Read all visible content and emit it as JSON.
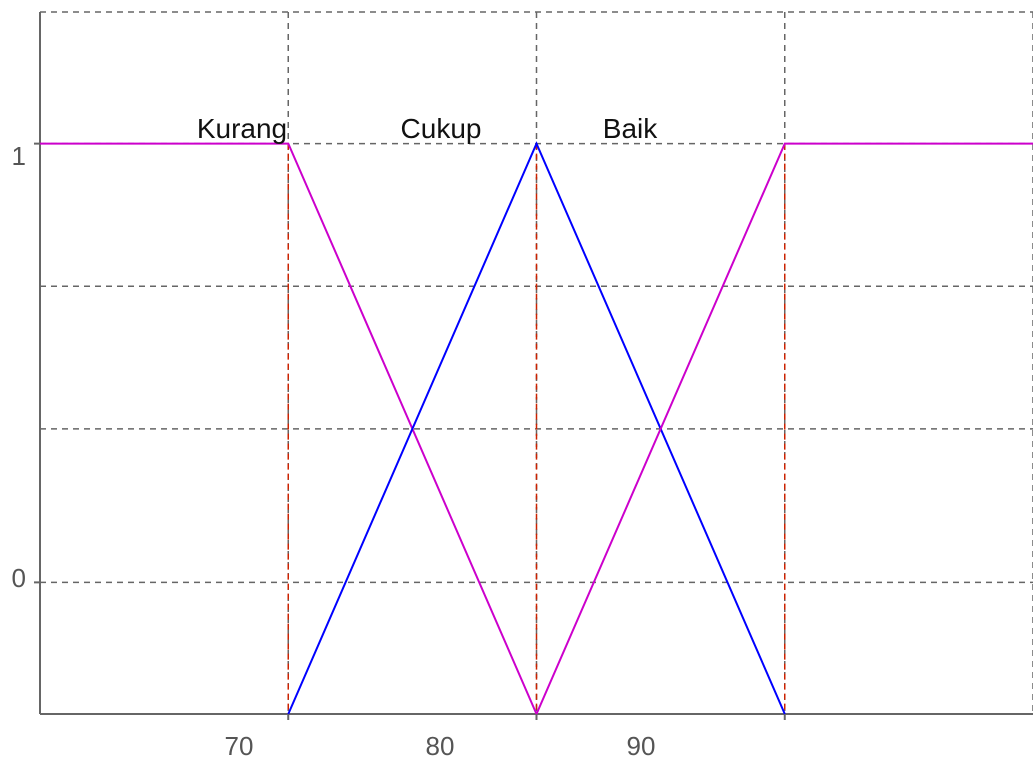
{
  "chart_data": {
    "type": "line",
    "x_ticks": [
      "70",
      "80",
      "90"
    ],
    "y_ticks": [
      "0",
      "1"
    ],
    "grid": true,
    "colors": {
      "magenta": "#cc00cc",
      "blue": "#0000ff",
      "red_dashed": "#cc2200",
      "grid": "#666666",
      "axis": "#666666"
    },
    "series": [
      {
        "name": "Kurang",
        "color": "#cc00cc",
        "points": [
          [
            60,
            1
          ],
          [
            70,
            1
          ],
          [
            80,
            -0.3
          ]
        ]
      },
      {
        "name": "Cukup",
        "color": "#0000ff",
        "points": [
          [
            70,
            -0.3
          ],
          [
            80,
            1
          ],
          [
            90,
            -0.3
          ]
        ]
      },
      {
        "name": "Baik",
        "color": "#cc00cc",
        "points": [
          [
            80,
            -0.3
          ],
          [
            90,
            1
          ],
          [
            100,
            1
          ]
        ]
      }
    ],
    "red_dashed_x": [
      70,
      80,
      90
    ],
    "xlim": [
      60,
      100
    ],
    "ylim": [
      -0.3,
      1.3
    ]
  }
}
